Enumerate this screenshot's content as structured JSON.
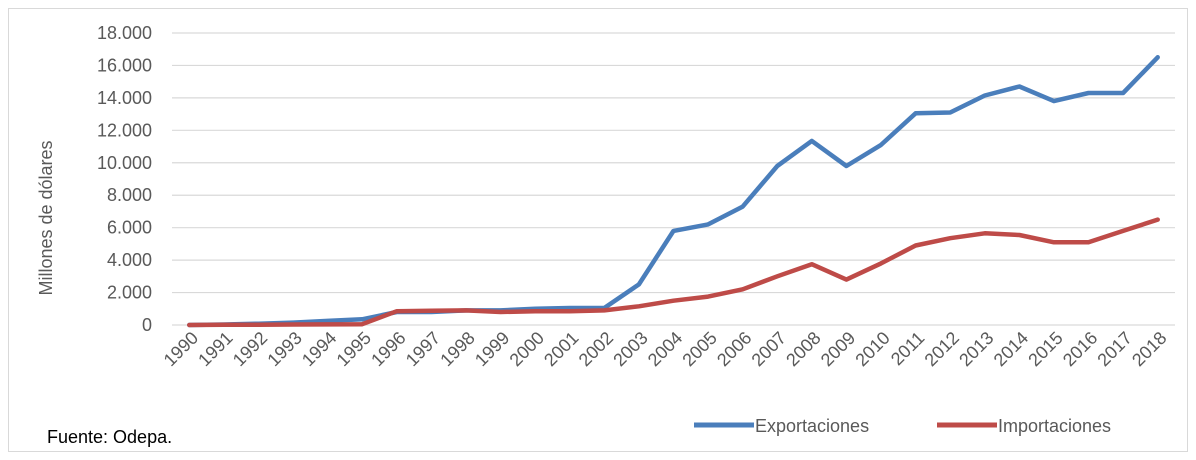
{
  "chart_data": {
    "type": "line",
    "ylabel": "Millones de dólares",
    "ylim": [
      0,
      18000
    ],
    "y_ticks": [
      "0",
      "2.000",
      "4.000",
      "6.000",
      "8.000",
      "10.000",
      "12.000",
      "14.000",
      "16.000",
      "18.000"
    ],
    "y_tick_values": [
      0,
      2000,
      4000,
      6000,
      8000,
      10000,
      12000,
      14000,
      16000,
      18000
    ],
    "grid": true,
    "legend_position": "bottom-right",
    "categories": [
      "1990",
      "1991",
      "1992",
      "1993",
      "1994",
      "1995",
      "1996",
      "1997",
      "1998",
      "1999",
      "2000",
      "2001",
      "2002",
      "2003",
      "2004",
      "2005",
      "2006",
      "2007",
      "2008",
      "2009",
      "2010",
      "2011",
      "2012",
      "2013",
      "2014",
      "2015",
      "2016",
      "2017",
      "2018"
    ],
    "series": [
      {
        "name": "Exportaciones",
        "color": "#4a7ebb",
        "values": [
          0,
          30,
          80,
          150,
          250,
          350,
          800,
          800,
          900,
          900,
          1000,
          1050,
          1050,
          2500,
          5800,
          6200,
          7300,
          9800,
          11350,
          9800,
          11100,
          13050,
          13100,
          14150,
          14700,
          13800,
          14300,
          14300,
          16500
        ]
      },
      {
        "name": "Importaciones",
        "color": "#be4b48",
        "values": [
          0,
          10,
          20,
          30,
          40,
          50,
          850,
          880,
          900,
          800,
          850,
          850,
          900,
          1150,
          1500,
          1750,
          2200,
          3000,
          3750,
          2800,
          3800,
          4900,
          5350,
          5650,
          5550,
          5100,
          5100,
          5800,
          6500
        ]
      }
    ]
  },
  "source_note": "Fuente: Odepa."
}
